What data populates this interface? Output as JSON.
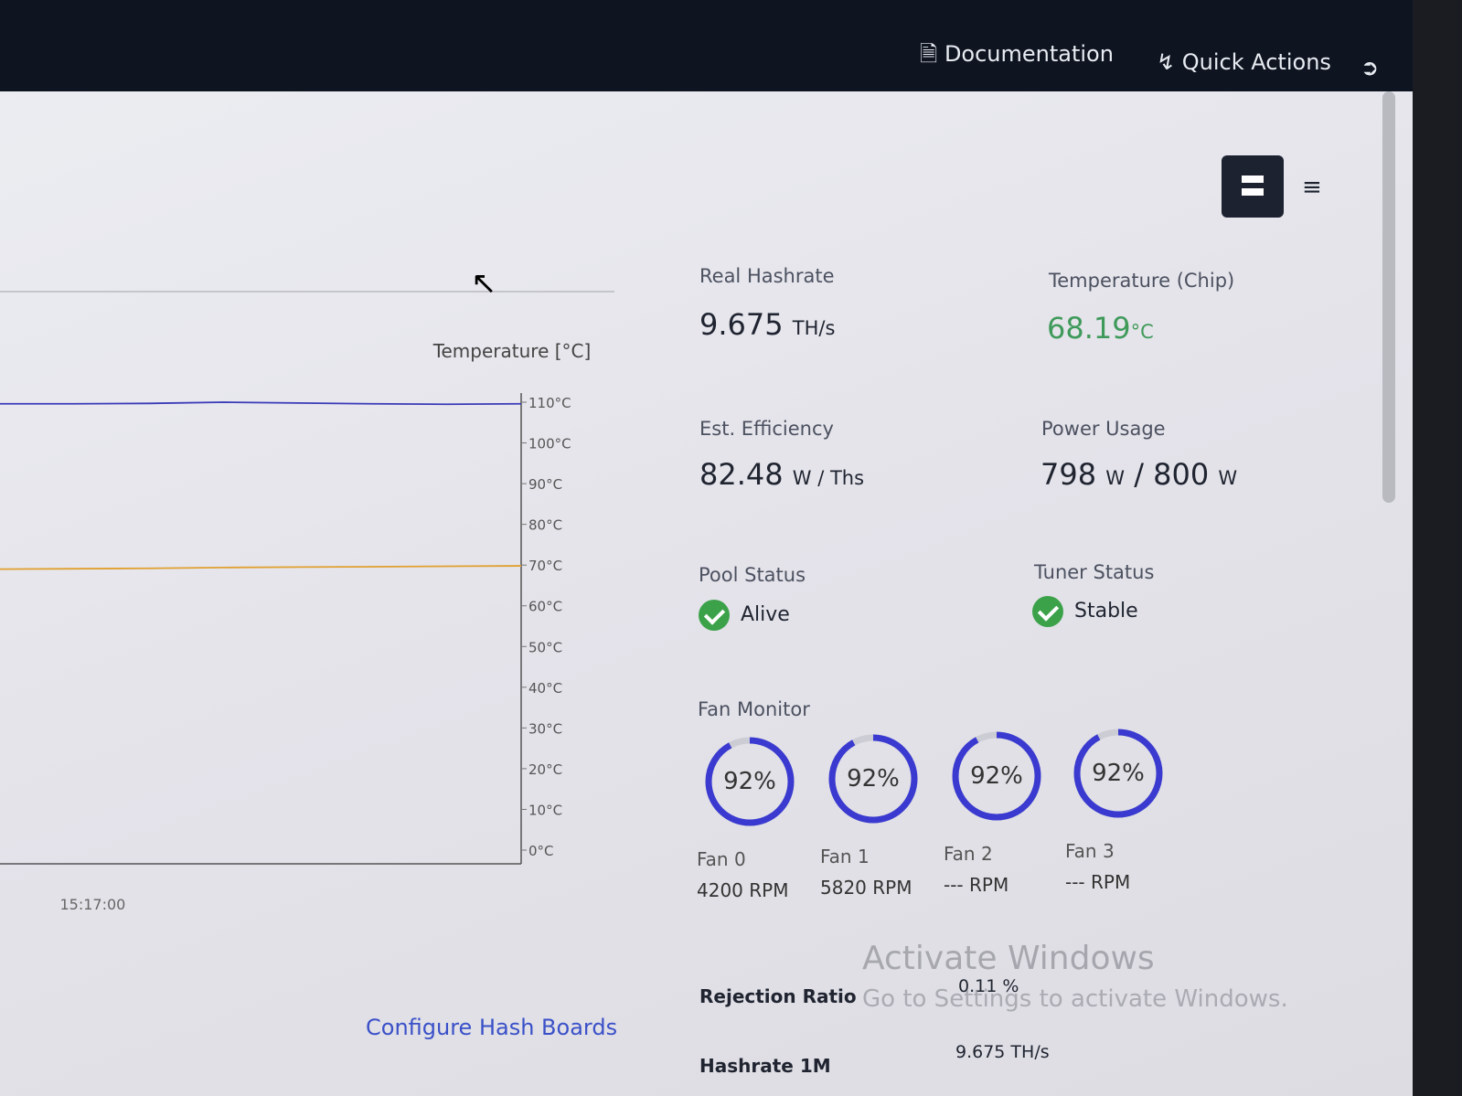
{
  "nav": {
    "documentation": "Documentation",
    "quick_actions": "Quick Actions"
  },
  "chart_data": {
    "type": "line",
    "y_label": "Temperature [°C]",
    "categories": [
      null,
      "15:17:00",
      null,
      null,
      null,
      null,
      null,
      null
    ],
    "series": [
      {
        "color": "#3a3ab8",
        "values": [
          109.6,
          109.6,
          109.7,
          110,
          109.8,
          109.6,
          109.5,
          109.6
        ]
      },
      {
        "color": "#e0a030",
        "values": [
          69,
          69.1,
          69.2,
          69.4,
          69.5,
          69.6,
          69.7,
          69.8
        ]
      }
    ],
    "ylim": [
      0,
      110
    ],
    "yticks": [
      {
        "value": 0,
        "label": "0°C"
      },
      {
        "value": 10,
        "label": "10°C"
      },
      {
        "value": 20,
        "label": "20°C"
      },
      {
        "value": 30,
        "label": "30°C"
      },
      {
        "value": 40,
        "label": "40°C"
      },
      {
        "value": 50,
        "label": "50°C"
      },
      {
        "value": 60,
        "label": "60°C"
      },
      {
        "value": 70,
        "label": "70°C"
      },
      {
        "value": 80,
        "label": "80°C"
      },
      {
        "value": 90,
        "label": "90°C"
      },
      {
        "value": 100,
        "label": "100°C"
      },
      {
        "value": 110,
        "label": "110°C"
      }
    ]
  },
  "configure_link": "Configure Hash Boards",
  "stats": {
    "real_hashrate": {
      "label": "Real Hashrate",
      "value": "9.675",
      "unit": "TH/s"
    },
    "chip_temperature": {
      "label": "Temperature (Chip)",
      "value": "68.19",
      "unit": "°C"
    },
    "efficiency": {
      "label": "Est. Efficiency",
      "value": "82.48",
      "unit": "W / Ths"
    },
    "power_usage": {
      "label": "Power Usage",
      "value": "798",
      "unit": "W",
      "separator": "/",
      "limit": "800",
      "limit_unit": "W"
    },
    "pool_status": {
      "label": "Pool Status",
      "value": "Alive"
    },
    "tuner_status": {
      "label": "Tuner Status",
      "value": "Stable"
    }
  },
  "fan_monitor": {
    "title": "Fan Monitor",
    "fans": [
      {
        "name": "Fan 0",
        "percent": 92,
        "percent_label": "92%",
        "rpm": "4200 RPM"
      },
      {
        "name": "Fan 1",
        "percent": 92,
        "percent_label": "92%",
        "rpm": "5820 RPM"
      },
      {
        "name": "Fan 2",
        "percent": 92,
        "percent_label": "92%",
        "rpm": "--- RPM"
      },
      {
        "name": "Fan 3",
        "percent": 92,
        "percent_label": "92%",
        "rpm": "--- RPM"
      }
    ]
  },
  "details": {
    "rejection_ratio": {
      "label": "Rejection Ratio",
      "value": "0.11 %"
    },
    "hashrate_1m": {
      "label": "Hashrate 1M",
      "value": "9.675 TH/s"
    }
  },
  "watermark": {
    "title": "Activate Windows",
    "subtitle": "Go to Settings to activate Windows."
  }
}
